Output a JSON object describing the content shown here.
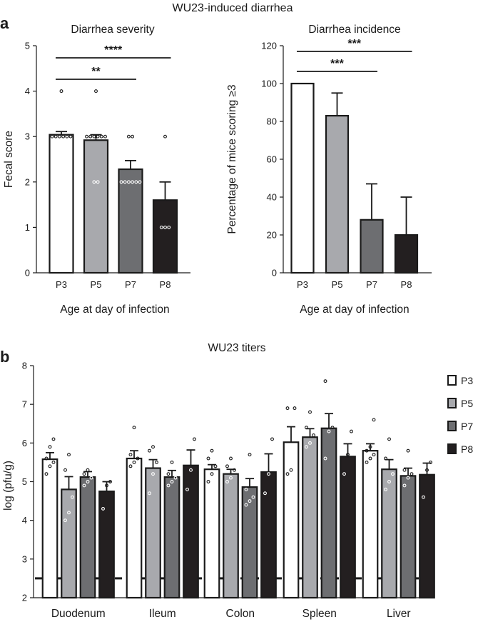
{
  "figure_title": "WU23-induced diarrhea",
  "panel_a_label": "a",
  "panel_b_label": "b",
  "chart_data": [
    {
      "type": "bar",
      "title": "Diarrhea severity",
      "xlabel": "Age at day of infection",
      "ylabel": "Fecal score",
      "categories": [
        "P3",
        "P5",
        "P7",
        "P8"
      ],
      "values": [
        3.04,
        2.92,
        2.28,
        1.6
      ],
      "errors": [
        0.07,
        0.12,
        0.19,
        0.4
      ],
      "fills": [
        "#ffffff",
        "#a8a9ad",
        "#6d6e71",
        "#231f20"
      ],
      "ylim": [
        0,
        5
      ],
      "yticks": [
        "0",
        "1",
        "2",
        "3",
        "4",
        "5"
      ],
      "points": [
        [
          3,
          3,
          3,
          3,
          3,
          3,
          4
        ],
        [
          2,
          2,
          3,
          3,
          3,
          3,
          3,
          3,
          4
        ],
        [
          2,
          2,
          2,
          2,
          2,
          2,
          3,
          3
        ],
        [
          1,
          1,
          1,
          3
        ]
      ],
      "significance": [
        {
          "from": "P3",
          "to": "P7",
          "label": "**"
        },
        {
          "from": "P3",
          "to": "P8",
          "label": "****"
        }
      ]
    },
    {
      "type": "bar",
      "title": "Diarrhea incidence",
      "xlabel": "Age at day of infection",
      "ylabel": "Percentage of mice scoring ≥3",
      "categories": [
        "P3",
        "P5",
        "P7",
        "P8"
      ],
      "values": [
        100,
        83,
        28,
        20
      ],
      "errors": [
        0,
        12,
        19,
        20
      ],
      "fills": [
        "#ffffff",
        "#a8a9ad",
        "#6d6e71",
        "#231f20"
      ],
      "ylim": [
        0,
        120
      ],
      "yticks": [
        "0",
        "20",
        "40",
        "60",
        "80",
        "100",
        "120"
      ],
      "significance": [
        {
          "from": "P3",
          "to": "P7",
          "label": "***"
        },
        {
          "from": "P3",
          "to": "P8",
          "label": "***"
        }
      ]
    },
    {
      "type": "bar",
      "title": "WU23 titers",
      "xlabel": "",
      "ylabel": "log (pfu/g)",
      "categories": [
        "Duodenum",
        "Ileum",
        "Colon",
        "Spleen",
        "Liver"
      ],
      "ylim": [
        2,
        8
      ],
      "yticks": [
        "2",
        "3",
        "4",
        "5",
        "6",
        "7",
        "8"
      ],
      "detection_limit": 2.5,
      "series": [
        {
          "name": "P3",
          "fill": "#ffffff",
          "values": [
            5.58,
            5.6,
            5.32,
            6.02,
            5.8
          ],
          "errors": [
            0.17,
            0.2,
            0.12,
            0.4,
            0.18
          ],
          "points": [
            [
              5.2,
              5.4,
              5.5,
              5.6,
              5.9,
              6.1
            ],
            [
              5.4,
              5.5,
              5.6,
              5.7,
              6.4
            ],
            [
              5.0,
              5.2,
              5.4,
              5.6,
              5.8
            ],
            [
              5.2,
              5.3,
              6.9,
              6.9
            ],
            [
              5.5,
              5.6,
              5.7,
              5.8,
              5.9,
              6.6
            ]
          ]
        },
        {
          "name": "P5",
          "fill": "#a8a9ad",
          "values": [
            4.8,
            5.35,
            5.2,
            6.15,
            5.32
          ],
          "errors": [
            0.33,
            0.22,
            0.12,
            0.22,
            0.25
          ],
          "points": [
            [
              4.0,
              4.2,
              4.6,
              5.3,
              5.7
            ],
            [
              4.7,
              5.2,
              5.5,
              5.8,
              5.9
            ],
            [
              5.0,
              5.1,
              5.3,
              5.4,
              5.6
            ],
            [
              5.9,
              6.0,
              6.2,
              6.4,
              6.8
            ],
            [
              4.8,
              5.0,
              5.2,
              5.6,
              6.1
            ]
          ]
        },
        {
          "name": "P7",
          "fill": "#6d6e71",
          "values": [
            5.12,
            5.12,
            4.86,
            6.38,
            5.15
          ],
          "errors": [
            0.14,
            0.17,
            0.22,
            0.38,
            0.2
          ],
          "points": [
            [
              4.9,
              5.0,
              5.1,
              5.2,
              5.3
            ],
            [
              4.9,
              5.0,
              5.1,
              5.2,
              5.5
            ],
            [
              4.4,
              4.5,
              4.6,
              4.8,
              5.7
            ],
            [
              5.6,
              6.3,
              6.4,
              7.6
            ],
            [
              4.9,
              5.1,
              5.2,
              5.3,
              5.8
            ]
          ]
        },
        {
          "name": "P8",
          "fill": "#231f20",
          "values": [
            4.75,
            5.42,
            5.25,
            5.65,
            5.18
          ],
          "errors": [
            0.25,
            0.4,
            0.47,
            0.33,
            0.3
          ],
          "points": [
            [
              4.3,
              4.9,
              5.0
            ],
            [
              4.8,
              5.3,
              6.1
            ],
            [
              4.7,
              5.2,
              6.1
            ],
            [
              5.2,
              5.7,
              6.3
            ],
            [
              4.6,
              5.3,
              5.5
            ]
          ]
        }
      ]
    }
  ]
}
